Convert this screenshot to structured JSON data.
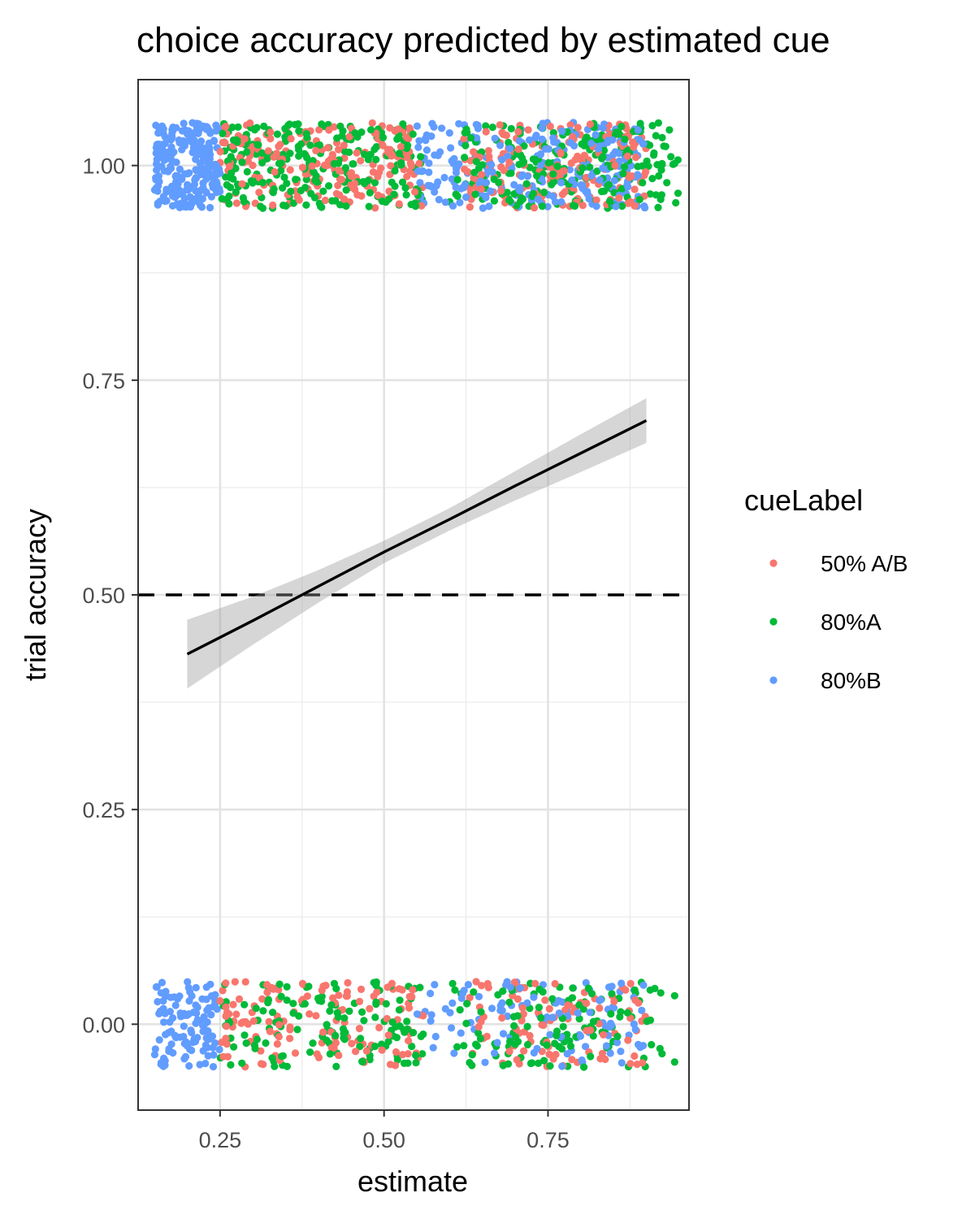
{
  "chart_data": {
    "type": "scatter",
    "title": "choice accuracy predicted by estimated cue",
    "xlabel": "estimate",
    "ylabel": "trial accuracy",
    "xlim": [
      0.125,
      0.965
    ],
    "ylim": [
      -0.1,
      1.1
    ],
    "x_ticks": [
      {
        "value": 0.25,
        "label": "0.25"
      },
      {
        "value": 0.5,
        "label": "0.50"
      },
      {
        "value": 0.75,
        "label": "0.75"
      }
    ],
    "y_ticks": [
      {
        "value": 0.0,
        "label": "0.00"
      },
      {
        "value": 0.25,
        "label": "0.25"
      },
      {
        "value": 0.5,
        "label": "0.50"
      },
      {
        "value": 0.75,
        "label": "0.75"
      },
      {
        "value": 1.0,
        "label": "1.00"
      }
    ],
    "x_minor_breaks": [
      0.125,
      0.375,
      0.625,
      0.875
    ],
    "y_minor_breaks": [
      0.125,
      0.375,
      0.625,
      0.875
    ],
    "grid": true,
    "reference_line": {
      "y": 0.5,
      "style": "dashed",
      "color": "#000000"
    },
    "jitter": {
      "y_spread": 0.05
    },
    "legend": {
      "title": "cueLabel",
      "position": "right",
      "entries": [
        {
          "label": "50% A/B",
          "color": "#F8766D"
        },
        {
          "label": "80%A",
          "color": "#00BA38"
        },
        {
          "label": "80%B",
          "color": "#619CFF"
        }
      ]
    },
    "series": [
      {
        "name": "50% A/B",
        "color": "#F8766D",
        "x_range": [
          0.25,
          0.9
        ],
        "clusters": [
          [
            0.25,
            0.56
          ],
          [
            0.62,
            0.9
          ]
        ],
        "n_correct": 380,
        "n_incorrect": 230
      },
      {
        "name": "80%A",
        "color": "#00BA38",
        "x_range": [
          0.25,
          0.95
        ],
        "clusters": [
          [
            0.25,
            0.56
          ],
          [
            0.6,
            0.95
          ]
        ],
        "n_correct": 460,
        "n_incorrect": 260
      },
      {
        "name": "80%B",
        "color": "#619CFF",
        "x_range": [
          0.15,
          0.9
        ],
        "clusters": [
          [
            0.15,
            0.25
          ],
          [
            0.55,
            0.9
          ]
        ],
        "n_correct": 470,
        "n_incorrect": 220
      }
    ],
    "fit_line": {
      "color": "#000000",
      "points": [
        {
          "x": 0.2,
          "y": 0.431,
          "lower": 0.391,
          "upper": 0.471
        },
        {
          "x": 0.3,
          "y": 0.47,
          "lower": 0.442,
          "upper": 0.498
        },
        {
          "x": 0.4,
          "y": 0.51,
          "lower": 0.491,
          "upper": 0.529
        },
        {
          "x": 0.5,
          "y": 0.55,
          "lower": 0.537,
          "upper": 0.563
        },
        {
          "x": 0.6,
          "y": 0.588,
          "lower": 0.575,
          "upper": 0.601
        },
        {
          "x": 0.7,
          "y": 0.627,
          "lower": 0.61,
          "upper": 0.644
        },
        {
          "x": 0.8,
          "y": 0.665,
          "lower": 0.643,
          "upper": 0.687
        },
        {
          "x": 0.9,
          "y": 0.703,
          "lower": 0.677,
          "upper": 0.729
        }
      ],
      "band_color": "#999999",
      "band_opacity": 0.4
    }
  }
}
